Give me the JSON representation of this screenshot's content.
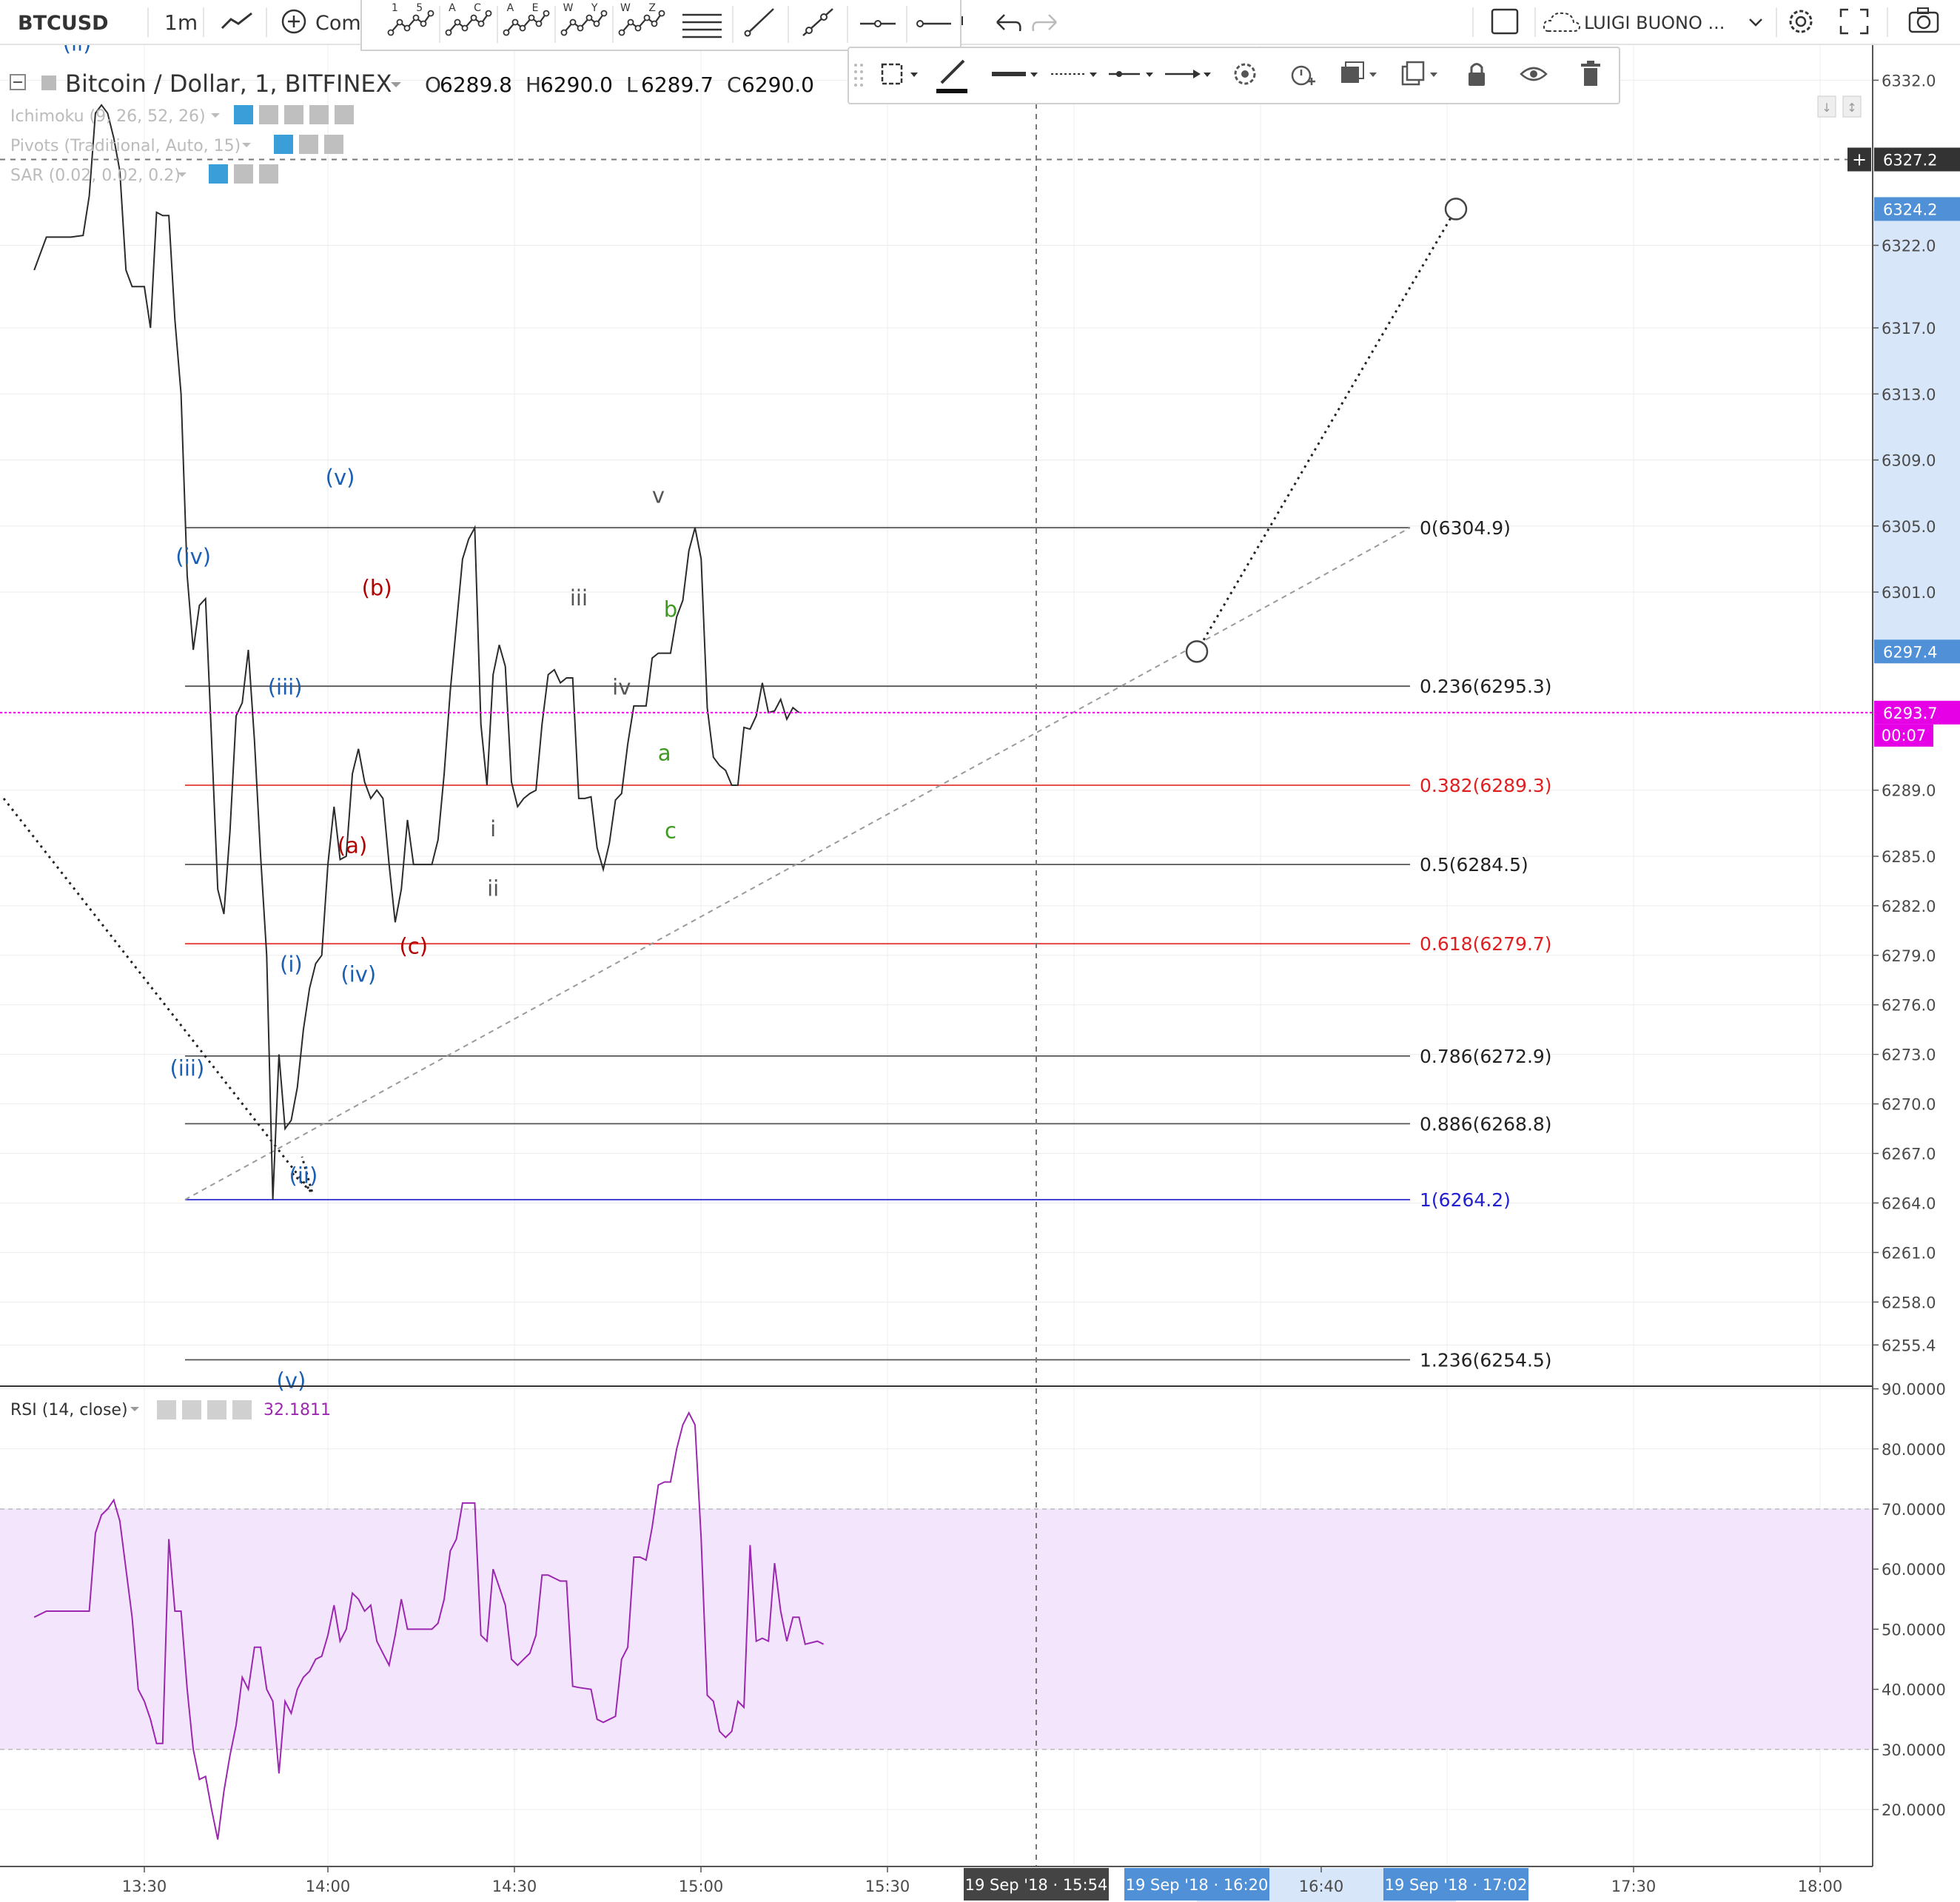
{
  "toolbar": {
    "symbol": "BTCUSD",
    "interval": "1m",
    "compare_label": "Comp",
    "pattern_tools": [
      {
        "icon": "elliott-impulse-icon",
        "label": "1 5"
      },
      {
        "icon": "elliott-correction-icon",
        "label": "A C"
      },
      {
        "icon": "elliott-triangle-icon",
        "label": "A E"
      },
      {
        "icon": "elliott-double-combo-icon",
        "label": "W Y"
      },
      {
        "icon": "elliott-triple-combo-icon",
        "label": "W Z"
      }
    ],
    "user_name": "LUIGI BUONO ...",
    "icons": [
      "line-chart-icon",
      "plus-circle-icon",
      "fib-lines-icon",
      "trend-line-icon",
      "ray-icon",
      "horizontal-line-icon",
      "horizontal-ray-icon",
      "undo-icon",
      "redo-icon",
      "fullscreen-box-icon",
      "cloud-icon",
      "chevron-down-icon",
      "gear-icon",
      "fullscreen-icon",
      "camera-icon"
    ]
  },
  "drawing_toolbar": {
    "icons": [
      "drag-handle-icon",
      "fill-color-icon",
      "pencil-color-icon",
      "line-width-icon",
      "line-style-icon",
      "line-end-icon",
      "arrow-end-icon",
      "gear-icon",
      "alert-add-icon",
      "visual-order-icon",
      "clone-icon",
      "lock-icon",
      "eye-icon",
      "trash-icon"
    ]
  },
  "legend": {
    "title": "Bitcoin / Dollar, 1, BITFINEX",
    "ohlc": [
      {
        "k": "O",
        "v": "6289.8"
      },
      {
        "k": "H",
        "v": "6290.0"
      },
      {
        "k": "L",
        "v": "6289.7"
      },
      {
        "k": "C",
        "v": "6290.0"
      }
    ],
    "indicators": [
      "Ichimoku (9, 26, 52, 26)",
      "Pivots (Traditional, Auto, 15)",
      "SAR (0.02, 0.02, 0.2)"
    ]
  },
  "rsi_legend": {
    "title": "RSI (14, close)",
    "value": "32.1811"
  },
  "colors": {
    "price_line": "#2b2b2b",
    "rsi_line": "#9c27b0",
    "rsi_band": "#f3e5fb",
    "wave_blue": "#1a5fb4",
    "wave_red": "#b30000",
    "wave_green": "#3c9a1e",
    "wave_gray": "#555555",
    "fib_black": "#555555",
    "fib_red": "#e53935",
    "fib_blue": "#2a2ad0",
    "magenta": "#e600e6",
    "price_badge": "#4f90d6"
  },
  "chart_data": {
    "type": "line",
    "symbol": "BTCUSD",
    "ylim": [
      6252,
      6335
    ],
    "price_ticks": [
      "6332.0",
      "6322.0",
      "6317.0",
      "6313.0",
      "6309.0",
      "6305.0",
      "6301.0",
      "6289.0",
      "6285.0",
      "6282.0",
      "6279.0",
      "6276.0",
      "6273.0",
      "6270.0",
      "6267.0",
      "6264.0",
      "6261.0",
      "6258.0",
      "6255.4"
    ],
    "time_ticks": [
      "13:30",
      "14:00",
      "14:30",
      "15:00",
      "15:30",
      "16:40",
      "17:30",
      "18:00"
    ],
    "price_series": [
      [
        "13:12",
        6320.5
      ],
      [
        "13:14",
        6322.5
      ],
      [
        "13:18",
        6322.5
      ],
      [
        "13:20",
        6322.6
      ],
      [
        "13:21",
        6325
      ],
      [
        "13:22",
        6330
      ],
      [
        "13:23",
        6330.5
      ],
      [
        "13:24",
        6330
      ],
      [
        "13:25",
        6328.5
      ],
      [
        "13:26",
        6326.5
      ],
      [
        "13:27",
        6320.5
      ],
      [
        "13:28",
        6319.5
      ],
      [
        "13:30",
        6319.5
      ],
      [
        "13:31",
        6317
      ],
      [
        "13:32",
        6324
      ],
      [
        "13:33",
        6323.8
      ],
      [
        "13:34",
        6323.8
      ],
      [
        "13:35",
        6317.5
      ],
      [
        "13:36",
        6313
      ],
      [
        "13:37",
        6302
      ],
      [
        "13:38",
        6297.5
      ],
      [
        "13:39",
        6300.2
      ],
      [
        "13:40",
        6300.6
      ],
      [
        "13:41",
        6292
      ],
      [
        "13:42",
        6283
      ],
      [
        "13:43",
        6281.5
      ],
      [
        "13:44",
        6286.5
      ],
      [
        "13:45",
        6293.5
      ],
      [
        "13:46",
        6294.3
      ],
      [
        "13:47",
        6297.5
      ],
      [
        "13:48",
        6292
      ],
      [
        "13:49",
        6285
      ],
      [
        "13:50",
        6279
      ],
      [
        "13:51",
        6264.2
      ],
      [
        "13:52",
        6273
      ],
      [
        "13:53",
        6268.5
      ],
      [
        "13:54",
        6269
      ],
      [
        "13:55",
        6271
      ],
      [
        "13:56",
        6274.5
      ],
      [
        "13:57",
        6277
      ],
      [
        "13:58",
        6278.5
      ],
      [
        "13:59",
        6279
      ],
      [
        "14:00",
        6284.5
      ],
      [
        "14:01",
        6288
      ],
      [
        "14:02",
        6284.8
      ],
      [
        "14:03",
        6285
      ],
      [
        "14:04",
        6290
      ],
      [
        "14:05",
        6291.5
      ],
      [
        "14:06",
        6289.5
      ],
      [
        "14:07",
        6288.5
      ],
      [
        "14:08",
        6289
      ],
      [
        "14:09",
        6288.5
      ],
      [
        "14:10",
        6284.5
      ],
      [
        "14:11",
        6281
      ],
      [
        "14:12",
        6283
      ],
      [
        "14:13",
        6287.2
      ],
      [
        "14:14",
        6284.5
      ],
      [
        "14:17",
        6284.5
      ],
      [
        "14:18",
        6286
      ],
      [
        "14:19",
        6290
      ],
      [
        "14:20",
        6295
      ],
      [
        "14:21",
        6299
      ],
      [
        "14:22",
        6303
      ],
      [
        "14:23",
        6304.2
      ],
      [
        "14:24",
        6304.9
      ],
      [
        "14:25",
        6293
      ],
      [
        "14:26",
        6289.3
      ],
      [
        "14:27",
        6296
      ],
      [
        "14:28",
        6297.8
      ],
      [
        "14:29",
        6296.5
      ],
      [
        "14:30",
        6289.5
      ],
      [
        "14:31",
        6288
      ],
      [
        "14:32",
        6288.5
      ],
      [
        "14:33",
        6288.8
      ],
      [
        "14:34",
        6289
      ],
      [
        "14:35",
        6293
      ],
      [
        "14:36",
        6296
      ],
      [
        "14:37",
        6296.3
      ],
      [
        "14:38",
        6295.5
      ],
      [
        "14:39",
        6295.8
      ],
      [
        "14:40",
        6295.8
      ],
      [
        "14:41",
        6288.5
      ],
      [
        "14:42",
        6288.5
      ],
      [
        "14:43",
        6288.6
      ],
      [
        "14:44",
        6285.5
      ],
      [
        "14:45",
        6284.2
      ],
      [
        "14:46",
        6285.8
      ],
      [
        "14:47",
        6288.4
      ],
      [
        "14:48",
        6288.8
      ],
      [
        "14:49",
        6291.8
      ],
      [
        "14:50",
        6294.1
      ],
      [
        "14:52",
        6294.1
      ],
      [
        "14:53",
        6297
      ],
      [
        "14:54",
        6297.3
      ],
      [
        "14:56",
        6297.3
      ],
      [
        "14:57",
        6299.5
      ],
      [
        "14:58",
        6300.5
      ],
      [
        "14:59",
        6303.5
      ],
      [
        "15:00",
        6304.9
      ],
      [
        "15:01",
        6303
      ],
      [
        "15:02",
        6294
      ],
      [
        "15:03",
        6291
      ],
      [
        "15:04",
        6290.5
      ],
      [
        "15:05",
        6290.2
      ],
      [
        "15:06",
        6289.3
      ],
      [
        "15:07",
        6289.3
      ],
      [
        "15:08",
        6292.8
      ],
      [
        "15:09",
        6292.7
      ],
      [
        "15:10",
        6293.5
      ],
      [
        "15:11",
        6295.5
      ],
      [
        "15:12",
        6293.7
      ],
      [
        "15:13",
        6293.8
      ],
      [
        "15:14",
        6294.5
      ],
      [
        "15:15",
        6293.3
      ],
      [
        "15:16",
        6294
      ],
      [
        "15:17",
        6293.7
      ]
    ],
    "rsi_ylim": [
      10,
      92
    ],
    "rsi_ticks": [
      "90.0000",
      "80.0000",
      "70.0000",
      "60.0000",
      "50.0000",
      "40.0000",
      "30.0000",
      "20.0000"
    ],
    "rsi_band": [
      30,
      70
    ],
    "rsi_series": [
      [
        "13:12",
        52
      ],
      [
        "13:14",
        53
      ],
      [
        "13:21",
        53
      ],
      [
        "13:22",
        66
      ],
      [
        "13:23",
        69
      ],
      [
        "13:24",
        70
      ],
      [
        "13:25",
        71.5
      ],
      [
        "13:26",
        68
      ],
      [
        "13:27",
        60
      ],
      [
        "13:28",
        52
      ],
      [
        "13:29",
        40
      ],
      [
        "13:30",
        38
      ],
      [
        "13:31",
        35
      ],
      [
        "13:32",
        31
      ],
      [
        "13:33",
        31
      ],
      [
        "13:34",
        65
      ],
      [
        "13:35",
        53
      ],
      [
        "13:36",
        53
      ],
      [
        "13:37",
        40
      ],
      [
        "13:38",
        30
      ],
      [
        "13:39",
        25
      ],
      [
        "13:40",
        25.5
      ],
      [
        "13:41",
        20
      ],
      [
        "13:42",
        15
      ],
      [
        "13:43",
        23
      ],
      [
        "13:44",
        29
      ],
      [
        "13:45",
        34
      ],
      [
        "13:46",
        42
      ],
      [
        "13:47",
        40
      ],
      [
        "13:48",
        47
      ],
      [
        "13:49",
        47
      ],
      [
        "13:50",
        40
      ],
      [
        "13:51",
        38
      ],
      [
        "13:52",
        26
      ],
      [
        "13:53",
        38
      ],
      [
        "13:54",
        36
      ],
      [
        "13:55",
        40
      ],
      [
        "13:56",
        42
      ],
      [
        "13:57",
        43
      ],
      [
        "13:58",
        45
      ],
      [
        "13:59",
        45.5
      ],
      [
        "14:00",
        49
      ],
      [
        "14:01",
        54
      ],
      [
        "14:02",
        48
      ],
      [
        "14:03",
        50
      ],
      [
        "14:04",
        56
      ],
      [
        "14:05",
        55
      ],
      [
        "14:06",
        53
      ],
      [
        "14:07",
        54
      ],
      [
        "14:08",
        48
      ],
      [
        "14:09",
        46
      ],
      [
        "14:10",
        44
      ],
      [
        "14:11",
        49
      ],
      [
        "14:12",
        55
      ],
      [
        "14:13",
        50
      ],
      [
        "14:17",
        50
      ],
      [
        "14:18",
        51
      ],
      [
        "14:19",
        55
      ],
      [
        "14:20",
        63
      ],
      [
        "14:21",
        65
      ],
      [
        "14:22",
        71
      ],
      [
        "14:23",
        71
      ],
      [
        "14:24",
        71
      ],
      [
        "14:25",
        49
      ],
      [
        "14:26",
        48
      ],
      [
        "14:27",
        60
      ],
      [
        "14:28",
        57
      ],
      [
        "14:29",
        54
      ],
      [
        "14:30",
        45
      ],
      [
        "14:31",
        44
      ],
      [
        "14:32",
        45
      ],
      [
        "14:33",
        46
      ],
      [
        "14:34",
        49
      ],
      [
        "14:35",
        59
      ],
      [
        "14:36",
        59
      ],
      [
        "14:37",
        58.5
      ],
      [
        "14:38",
        58
      ],
      [
        "14:39",
        58
      ],
      [
        "14:40",
        40.5
      ],
      [
        "14:41",
        40.3
      ],
      [
        "14:43",
        40
      ],
      [
        "14:44",
        35
      ],
      [
        "14:45",
        34.5
      ],
      [
        "14:46",
        35
      ],
      [
        "14:47",
        35.5
      ],
      [
        "14:48",
        45
      ],
      [
        "14:49",
        47
      ],
      [
        "14:50",
        62
      ],
      [
        "14:51",
        62
      ],
      [
        "14:52",
        61.5
      ],
      [
        "14:53",
        67
      ],
      [
        "14:54",
        74
      ],
      [
        "14:55",
        74.5
      ],
      [
        "14:56",
        74.5
      ],
      [
        "14:57",
        80
      ],
      [
        "14:58",
        84
      ],
      [
        "14:59",
        86
      ],
      [
        "15:00",
        84
      ],
      [
        "15:01",
        65
      ],
      [
        "15:02",
        39
      ],
      [
        "15:03",
        38
      ],
      [
        "15:04",
        33
      ],
      [
        "15:05",
        32
      ],
      [
        "15:06",
        33
      ],
      [
        "15:07",
        38
      ],
      [
        "15:08",
        37
      ],
      [
        "15:09",
        64
      ],
      [
        "15:10",
        48
      ],
      [
        "15:11",
        48.5
      ],
      [
        "15:12",
        48
      ],
      [
        "15:13",
        61
      ],
      [
        "15:14",
        53
      ],
      [
        "15:15",
        48
      ],
      [
        "15:16",
        52
      ],
      [
        "15:17",
        52
      ],
      [
        "15:18",
        47.5
      ],
      [
        "15:20",
        48
      ],
      [
        "15:21",
        47.5
      ]
    ],
    "fib_levels": [
      {
        "label": "0(6304.9)",
        "price": 6304.9,
        "color": "black"
      },
      {
        "label": "0.236(6295.3)",
        "price": 6295.3,
        "color": "black"
      },
      {
        "label": "0.382(6289.3)",
        "price": 6289.3,
        "color": "red"
      },
      {
        "label": "0.5(6284.5)",
        "price": 6284.5,
        "color": "black"
      },
      {
        "label": "0.618(6279.7)",
        "price": 6279.7,
        "color": "red"
      },
      {
        "label": "0.786(6272.9)",
        "price": 6272.9,
        "color": "black"
      },
      {
        "label": "0.886(6268.8)",
        "price": 6268.8,
        "color": "black"
      },
      {
        "label": "1(6264.2)",
        "price": 6264.2,
        "color": "blue"
      },
      {
        "label": "1.236(6254.5)",
        "price": 6254.5,
        "color": "black"
      }
    ],
    "wave_labels": [
      {
        "text": "(ii)",
        "color": "blue",
        "t": "13:19",
        "p": 6333.8
      },
      {
        "text": "(iv)",
        "color": "blue",
        "t": "13:38",
        "p": 6302.7
      },
      {
        "text": "(v)",
        "color": "blue",
        "t": "14:02",
        "p": 6307.5
      },
      {
        "text": "(iii)",
        "color": "blue",
        "t": "13:53",
        "p": 6294.8
      },
      {
        "text": "(b)",
        "color": "red",
        "t": "14:08",
        "p": 6300.8
      },
      {
        "text": "iii",
        "color": "gray",
        "t": "14:41",
        "p": 6300.2
      },
      {
        "text": "v",
        "color": "gray",
        "t": "14:54",
        "p": 6306.4
      },
      {
        "text": "b",
        "color": "green",
        "t": "14:56",
        "p": 6299.5
      },
      {
        "text": "iv",
        "color": "gray",
        "t": "14:48",
        "p": 6294.8
      },
      {
        "text": "a",
        "color": "green",
        "t": "14:55",
        "p": 6290.8
      },
      {
        "text": "i",
        "color": "gray",
        "t": "14:27",
        "p": 6286.2
      },
      {
        "text": "(a)",
        "color": "red",
        "t": "14:04",
        "p": 6285.2
      },
      {
        "text": "c",
        "color": "green",
        "t": "14:56",
        "p": 6286.1
      },
      {
        "text": "ii",
        "color": "gray",
        "t": "14:27",
        "p": 6282.6
      },
      {
        "text": "(c)",
        "color": "red",
        "t": "14:14",
        "p": 6279.1
      },
      {
        "text": "(i)",
        "color": "blue",
        "t": "13:54",
        "p": 6278.0
      },
      {
        "text": "(iv)",
        "color": "blue",
        "t": "14:05",
        "p": 6277.4
      },
      {
        "text": "(iii)",
        "color": "blue",
        "t": "13:37",
        "p": 6271.7
      },
      {
        "text": "(ii)",
        "color": "blue",
        "t": "13:56",
        "p": 6265.2
      },
      {
        "text": "(v)",
        "color": "blue",
        "t": "13:54",
        "p": 6252.8
      }
    ]
  },
  "price_axis": {
    "badges": [
      {
        "text": "6327.2",
        "bg": "#333333",
        "price": 6327.2
      },
      {
        "text": "6324.2",
        "bg": "#4f90d6",
        "price": 6324.2
      },
      {
        "text": "6297.4",
        "bg": "#4f90d6",
        "price": 6297.4
      },
      {
        "text": "6293.7",
        "bg": "#e600e6",
        "price": 6293.7
      }
    ],
    "countdown": "00:07"
  },
  "time_axis": {
    "cursor_label": "19 Sep '18 · 15:54",
    "range_labels": [
      "19 Sep '18 · 16:20",
      "19 Sep '18 · 17:02"
    ]
  }
}
